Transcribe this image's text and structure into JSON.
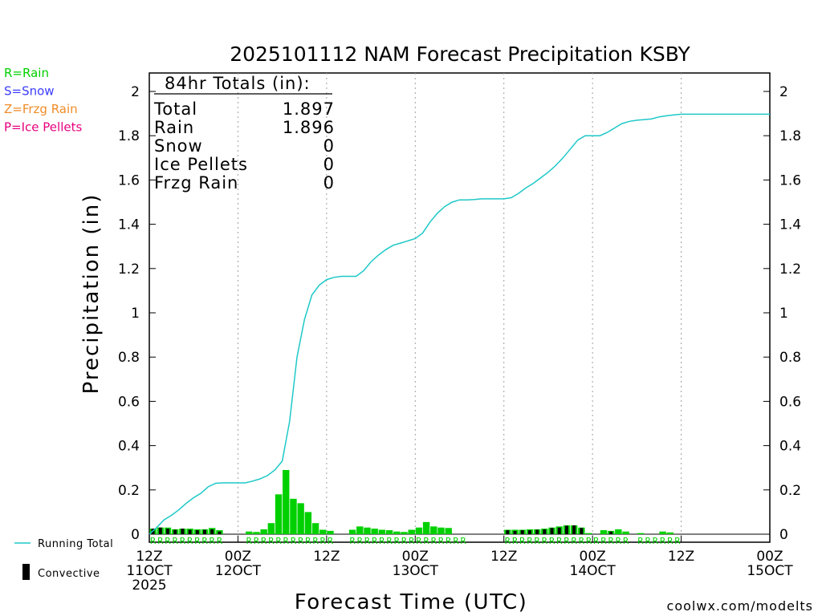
{
  "chart_data": {
    "type": "line",
    "title": "2025101112 NAM Forecast Precipitation KSBY",
    "ylabel": "Precipitation (in)",
    "xlabel": "Forecast Time (UTC)",
    "ylim": [
      0,
      2.1
    ],
    "xlim": [
      0,
      84
    ],
    "y_ticks": [
      0,
      0.2,
      0.4,
      0.6,
      0.8,
      1,
      1.2,
      1.4,
      1.6,
      1.8,
      2
    ],
    "y_tick_labels": [
      "0",
      "0.2",
      "0.4",
      "0.6",
      "0.8",
      "1",
      "1.2",
      "1.4",
      "1.6",
      "1.8",
      "2"
    ],
    "x_ticks": [
      {
        "x": 0,
        "lines": [
          "12Z",
          "11OCT",
          "2025"
        ]
      },
      {
        "x": 12,
        "lines": [
          "00Z",
          "12OCT"
        ]
      },
      {
        "x": 24,
        "lines": [
          "12Z"
        ]
      },
      {
        "x": 36,
        "lines": [
          "00Z",
          "13OCT"
        ]
      },
      {
        "x": 48,
        "lines": [
          "12Z"
        ]
      },
      {
        "x": 60,
        "lines": [
          "00Z",
          "14OCT"
        ]
      },
      {
        "x": 72,
        "lines": [
          "12Z"
        ]
      },
      {
        "x": 84,
        "lines": [
          "00Z",
          "15OCT"
        ]
      }
    ],
    "grid": "vertical dotted lines at 12-hour intervals",
    "series": [
      {
        "name": "Running Total",
        "color": "#1ec8c8",
        "x": [
          0,
          1,
          2,
          3,
          4,
          5,
          6,
          7,
          8,
          9,
          10,
          11,
          12,
          13,
          14,
          15,
          16,
          17,
          18,
          19,
          20,
          21,
          22,
          23,
          24,
          25,
          26,
          27,
          28,
          29,
          30,
          31,
          32,
          33,
          34,
          35,
          36,
          37,
          38,
          39,
          40,
          41,
          42,
          43,
          44,
          45,
          46,
          47,
          48,
          49,
          50,
          51,
          52,
          53,
          54,
          55,
          56,
          57,
          58,
          59,
          60,
          61,
          62,
          63,
          64,
          65,
          66,
          67,
          68,
          69,
          70,
          71,
          72,
          73,
          74,
          75,
          76,
          77,
          78,
          79,
          80,
          81,
          82,
          83,
          84
        ],
        "values": [
          0,
          0.03,
          0.065,
          0.085,
          0.11,
          0.14,
          0.165,
          0.185,
          0.215,
          0.23,
          0.232,
          0.232,
          0.232,
          0.232,
          0.24,
          0.25,
          0.265,
          0.29,
          0.33,
          0.51,
          0.8,
          0.97,
          1.08,
          1.125,
          1.15,
          1.16,
          1.165,
          1.165,
          1.165,
          1.19,
          1.23,
          1.26,
          1.285,
          1.305,
          1.315,
          1.325,
          1.335,
          1.36,
          1.41,
          1.45,
          1.48,
          1.5,
          1.51,
          1.51,
          1.512,
          1.515,
          1.515,
          1.515,
          1.515,
          1.52,
          1.54,
          1.565,
          1.585,
          1.61,
          1.635,
          1.665,
          1.7,
          1.74,
          1.78,
          1.8,
          1.8,
          1.8,
          1.815,
          1.835,
          1.855,
          1.865,
          1.87,
          1.873,
          1.876,
          1.885,
          1.89,
          1.894,
          1.897,
          1.897,
          1.897,
          1.897,
          1.897,
          1.897,
          1.897,
          1.897,
          1.897,
          1.897,
          1.897,
          1.897,
          1.897
        ]
      },
      {
        "name": "Rain",
        "type": "bar",
        "color": "#00d000",
        "x": [
          1,
          2,
          3,
          4,
          5,
          6,
          7,
          8,
          9,
          10,
          14,
          15,
          16,
          17,
          18,
          19,
          20,
          21,
          22,
          23,
          24,
          25,
          28,
          29,
          30,
          31,
          32,
          33,
          34,
          35,
          36,
          37,
          38,
          39,
          40,
          41,
          49,
          50,
          51,
          52,
          53,
          54,
          55,
          56,
          57,
          58,
          59,
          60,
          62,
          63,
          64,
          65,
          67,
          70,
          71
        ],
        "values": [
          0.025,
          0.03,
          0.03,
          0.022,
          0.025,
          0.025,
          0.022,
          0.022,
          0.028,
          0.018,
          0.012,
          0.01,
          0.022,
          0.05,
          0.18,
          0.29,
          0.16,
          0.14,
          0.1,
          0.05,
          0.02,
          0.015,
          0.02,
          0.035,
          0.03,
          0.025,
          0.02,
          0.018,
          0.012,
          0.01,
          0.02,
          0.03,
          0.055,
          0.035,
          0.03,
          0.028,
          0.02,
          0.02,
          0.02,
          0.022,
          0.022,
          0.025,
          0.03,
          0.035,
          0.04,
          0.04,
          0.03,
          0.005,
          0.018,
          0.015,
          0.022,
          0.012,
          0.005,
          0.012,
          0.008
        ]
      },
      {
        "name": "Convective",
        "type": "bar",
        "color": "#000000",
        "x": [
          1,
          2,
          3,
          4,
          5,
          6,
          7,
          8,
          9,
          10,
          49,
          50,
          51,
          52,
          53,
          54,
          55,
          56,
          57,
          58,
          59,
          63
        ],
        "values": [
          0.025,
          0.03,
          0.025,
          0.02,
          0.025,
          0.02,
          0.018,
          0.02,
          0.022,
          0.012,
          0.018,
          0.015,
          0.018,
          0.018,
          0.02,
          0.022,
          0.028,
          0.03,
          0.038,
          0.04,
          0.028,
          0.012
        ]
      }
    ],
    "type_letters_row": "RRRRRRRRRRR",
    "type_letter_x": [
      1,
      2,
      3,
      4,
      5,
      6,
      7,
      8,
      9,
      10,
      14,
      15,
      16,
      17,
      18,
      19,
      20,
      21,
      22,
      23,
      24,
      25,
      28,
      29,
      30,
      31,
      32,
      33,
      34,
      35,
      36,
      37,
      38,
      39,
      40,
      41,
      42,
      43,
      49,
      50,
      51,
      52,
      53,
      54,
      55,
      56,
      57,
      58,
      59,
      60,
      61,
      62,
      63,
      64,
      65,
      67,
      68,
      69,
      70,
      71,
      72
    ],
    "type_letter": "R"
  },
  "totals_box": {
    "header": "84hr Totals (in):",
    "rows": [
      {
        "label": "Total",
        "value": "1.897"
      },
      {
        "label": "Rain",
        "value": "1.896"
      },
      {
        "label": "Snow",
        "value": "0"
      },
      {
        "label": "Ice Pellets",
        "value": "0"
      },
      {
        "label": "Frzg Rain",
        "value": "0"
      }
    ]
  },
  "type_key": [
    {
      "text": "R=Rain",
      "color": "#00d000"
    },
    {
      "text": "S=Snow",
      "color": "#3c3cff"
    },
    {
      "text": "Z=Frzg Rain",
      "color": "#f08c28"
    },
    {
      "text": "P=Ice Pellets",
      "color": "#e6007e"
    }
  ],
  "legend": {
    "running_total": "Running Total",
    "convective": "Convective"
  },
  "credit": {
    "text": "coolwx.com/modelts",
    "color": "#e00000"
  }
}
